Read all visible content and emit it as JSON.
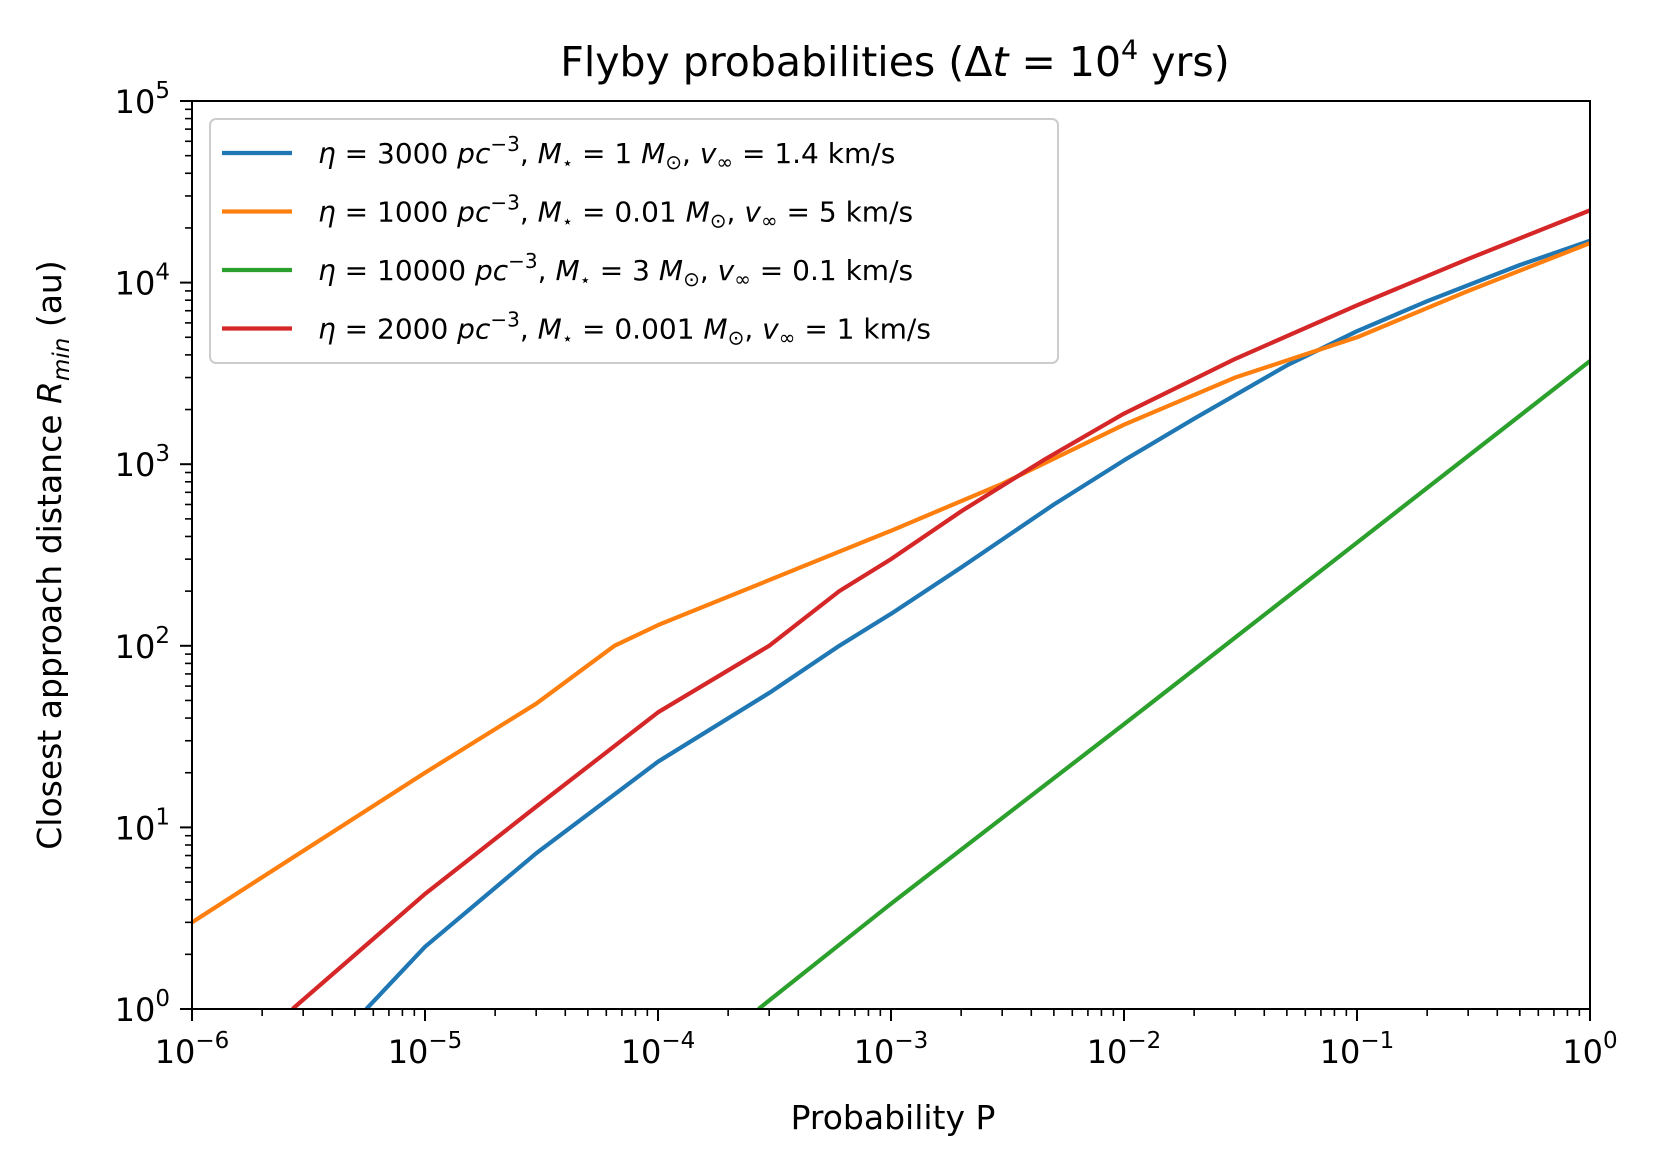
{
  "chart_data": {
    "type": "line",
    "title": "Flyby probabilities (Δt = 10^4 yrs)",
    "title_parts": {
      "prefix": "Flyby probabilities (",
      "delta": "Δ",
      "t": "t",
      "equals": " = 10",
      "exp": "4",
      "suffix": " yrs)"
    },
    "xlabel": "Probability P",
    "ylabel": "Closest approach distance R_min (au)",
    "ylabel_parts": {
      "main": "Closest approach distance ",
      "symbol": "R",
      "sub": "min",
      "unit": " (au)"
    },
    "xscale": "log",
    "yscale": "log",
    "xlim": [
      1e-06,
      1
    ],
    "ylim": [
      1,
      100000
    ],
    "x_ticks": [
      {
        "value": 1e-06,
        "base": "10",
        "exp": "−6"
      },
      {
        "value": 1e-05,
        "base": "10",
        "exp": "−5"
      },
      {
        "value": 0.0001,
        "base": "10",
        "exp": "−4"
      },
      {
        "value": 0.001,
        "base": "10",
        "exp": "−3"
      },
      {
        "value": 0.01,
        "base": "10",
        "exp": "−2"
      },
      {
        "value": 0.1,
        "base": "10",
        "exp": "−1"
      },
      {
        "value": 1,
        "base": "10",
        "exp": "0"
      }
    ],
    "y_ticks": [
      {
        "value": 1,
        "base": "10",
        "exp": "0"
      },
      {
        "value": 10,
        "base": "10",
        "exp": "1"
      },
      {
        "value": 100,
        "base": "10",
        "exp": "2"
      },
      {
        "value": 1000,
        "base": "10",
        "exp": "3"
      },
      {
        "value": 10000,
        "base": "10",
        "exp": "4"
      },
      {
        "value": 100000,
        "base": "10",
        "exp": "5"
      }
    ],
    "legend_position": "top-left",
    "series": [
      {
        "name": "η = 3000 pc^-3, M⋆ = 1 M⊙, v∞ = 1.4 km/s",
        "eta": "3000",
        "mass": "1",
        "vinf": "1.4",
        "color": "#1f77b4",
        "x": [
          5.6e-06,
          1e-05,
          3e-05,
          0.0001,
          0.0003,
          0.0006,
          0.001,
          0.002,
          0.005,
          0.01,
          0.02,
          0.05,
          0.1,
          0.2,
          0.5,
          1
        ],
        "y": [
          1,
          2.2,
          7.2,
          23,
          55,
          100,
          150,
          270,
          600,
          1050,
          1780,
          3500,
          5400,
          7900,
          12500,
          17000
        ]
      },
      {
        "name": "η = 1000 pc^-3, M⋆ = 0.01 M⊙, v∞ = 5 km/s",
        "eta": "1000",
        "mass": "0.01",
        "vinf": "5",
        "color": "#ff7f0e",
        "x": [
          1e-06,
          1e-05,
          3e-05,
          6.5e-05,
          0.0001,
          0.0003,
          0.001,
          0.003,
          0.01,
          0.03,
          0.1,
          0.3,
          1
        ],
        "y": [
          3,
          20,
          48,
          100,
          130,
          230,
          430,
          780,
          1650,
          3000,
          5000,
          9000,
          16500
        ]
      },
      {
        "name": "η = 10000 pc^-3, M⋆ = 3 M⊙, v∞ = 0.1 km/s",
        "eta": "10000",
        "mass": "3",
        "vinf": "0.1",
        "color": "#2ca02c",
        "x": [
          0.00027,
          0.001,
          0.01,
          0.1,
          1
        ],
        "y": [
          1,
          3.8,
          37,
          370,
          3700
        ]
      },
      {
        "name": "η = 2000 pc^-3, M⋆ = 0.001 M⊙, v∞ = 1 km/s",
        "eta": "2000",
        "mass": "0.001",
        "vinf": "1",
        "color": "#d62728",
        "x": [
          2.7e-06,
          1e-05,
          3e-05,
          0.0001,
          0.0003,
          0.0006,
          0.001,
          0.002,
          0.0045,
          0.01,
          0.03,
          0.1,
          0.3,
          1
        ],
        "y": [
          1,
          4.3,
          13,
          43,
          100,
          200,
          300,
          550,
          1050,
          1900,
          3800,
          7500,
          13500,
          25000
        ]
      }
    ]
  }
}
